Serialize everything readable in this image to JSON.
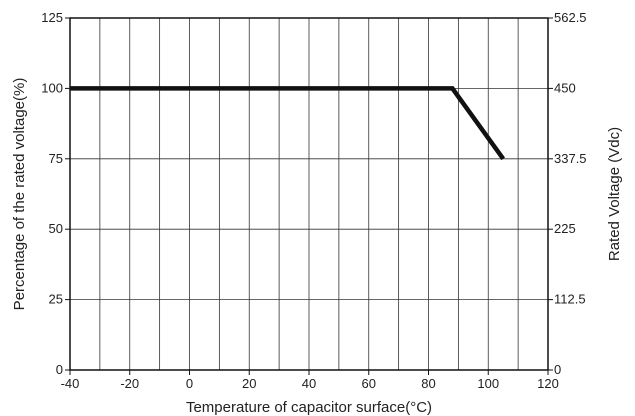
{
  "chart_data": {
    "type": "line",
    "title": "",
    "xlabel": "Temperature of capacitor surface(°C)",
    "ylabel": "Percentage of the rated voltage(%)",
    "y2label": "Rated Voltage (Vdc)",
    "xlim": [
      -40,
      120
    ],
    "ylim": [
      0,
      125
    ],
    "y2lim": [
      0,
      562.5
    ],
    "grid": true,
    "x_ticks": [
      "-40",
      "-20",
      "0",
      "20",
      "40",
      "60",
      "80",
      "100",
      "120"
    ],
    "y_ticks": [
      "0",
      "25",
      "50",
      "75",
      "100",
      "125"
    ],
    "y2_ticks": [
      "0",
      "112.5",
      "225",
      "337.5",
      "450",
      "562.5"
    ],
    "series": [
      {
        "x": [
          -40,
          88,
          105
        ],
        "y": [
          100,
          100,
          75
        ]
      }
    ]
  }
}
